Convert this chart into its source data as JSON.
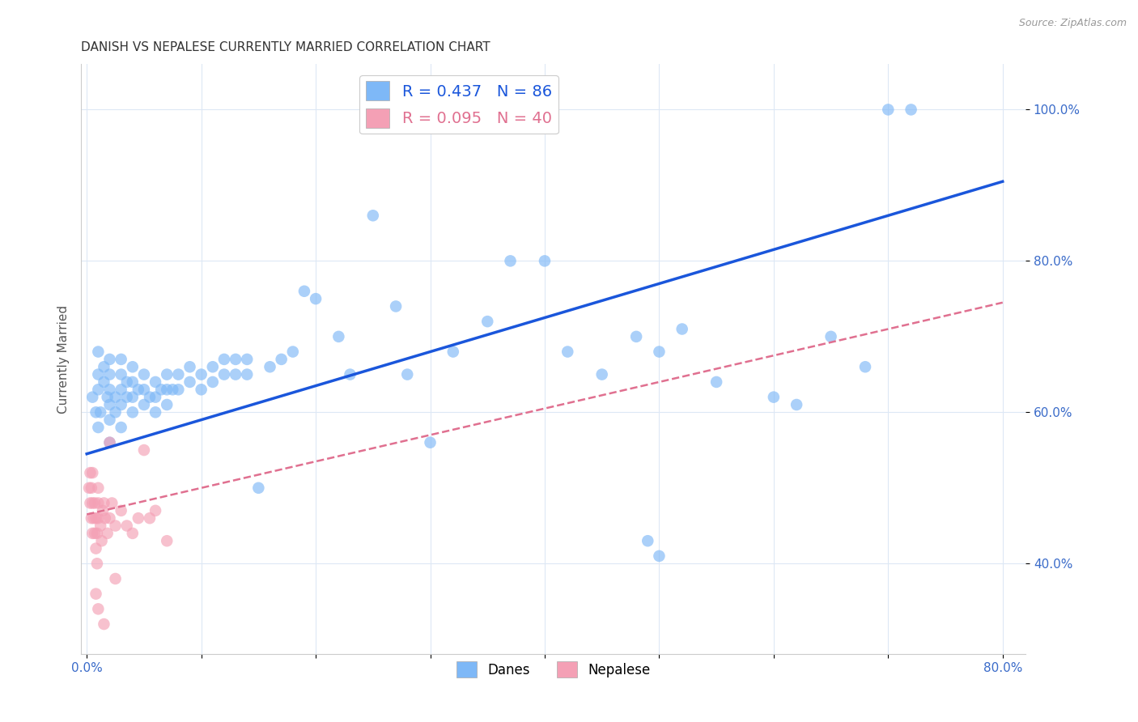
{
  "title": "DANISH VS NEPALESE CURRENTLY MARRIED CORRELATION CHART",
  "source": "Source: ZipAtlas.com",
  "ylabel": "Currently Married",
  "xlim": [
    -0.005,
    0.82
  ],
  "ylim": [
    0.28,
    1.06
  ],
  "x_ticks": [
    0.0,
    0.1,
    0.2,
    0.3,
    0.4,
    0.5,
    0.6,
    0.7,
    0.8
  ],
  "x_tick_labels": [
    "0.0%",
    "",
    "",
    "",
    "",
    "",
    "",
    "",
    "80.0%"
  ],
  "y_ticks": [
    0.4,
    0.6,
    0.8,
    1.0
  ],
  "y_tick_labels": [
    "40.0%",
    "60.0%",
    "80.0%",
    "100.0%"
  ],
  "danes_R": 0.437,
  "danes_N": 86,
  "nepalese_R": 0.095,
  "nepalese_N": 40,
  "danes_color": "#7eb8f7",
  "danes_line_color": "#1a56db",
  "nepalese_color": "#f4a0b5",
  "nepalese_line_color": "#e07090",
  "legend_label_danes": "Danes",
  "legend_label_nepalese": "Nepalese",
  "danes_x": [
    0.005,
    0.008,
    0.01,
    0.01,
    0.01,
    0.01,
    0.012,
    0.015,
    0.015,
    0.018,
    0.02,
    0.02,
    0.02,
    0.02,
    0.02,
    0.02,
    0.025,
    0.025,
    0.03,
    0.03,
    0.03,
    0.03,
    0.03,
    0.035,
    0.035,
    0.04,
    0.04,
    0.04,
    0.04,
    0.045,
    0.05,
    0.05,
    0.05,
    0.055,
    0.06,
    0.06,
    0.06,
    0.065,
    0.07,
    0.07,
    0.07,
    0.075,
    0.08,
    0.08,
    0.09,
    0.09,
    0.1,
    0.1,
    0.11,
    0.11,
    0.12,
    0.12,
    0.13,
    0.13,
    0.14,
    0.14,
    0.15,
    0.16,
    0.17,
    0.18,
    0.19,
    0.2,
    0.22,
    0.23,
    0.25,
    0.27,
    0.28,
    0.3,
    0.32,
    0.35,
    0.37,
    0.4,
    0.42,
    0.45,
    0.48,
    0.5,
    0.52,
    0.55,
    0.6,
    0.62,
    0.65,
    0.68,
    0.7,
    0.72,
    0.49,
    0.5
  ],
  "danes_y": [
    0.62,
    0.6,
    0.58,
    0.63,
    0.65,
    0.68,
    0.6,
    0.64,
    0.66,
    0.62,
    0.56,
    0.59,
    0.61,
    0.63,
    0.65,
    0.67,
    0.6,
    0.62,
    0.58,
    0.61,
    0.63,
    0.65,
    0.67,
    0.62,
    0.64,
    0.6,
    0.62,
    0.64,
    0.66,
    0.63,
    0.61,
    0.63,
    0.65,
    0.62,
    0.6,
    0.62,
    0.64,
    0.63,
    0.61,
    0.63,
    0.65,
    0.63,
    0.63,
    0.65,
    0.64,
    0.66,
    0.63,
    0.65,
    0.64,
    0.66,
    0.65,
    0.67,
    0.65,
    0.67,
    0.65,
    0.67,
    0.5,
    0.66,
    0.67,
    0.68,
    0.76,
    0.75,
    0.7,
    0.65,
    0.86,
    0.74,
    0.65,
    0.56,
    0.68,
    0.72,
    0.8,
    0.8,
    0.68,
    0.65,
    0.7,
    0.68,
    0.71,
    0.64,
    0.62,
    0.61,
    0.7,
    0.66,
    1.0,
    1.0,
    0.43,
    0.41
  ],
  "nepalese_x": [
    0.002,
    0.003,
    0.003,
    0.004,
    0.004,
    0.005,
    0.005,
    0.005,
    0.006,
    0.007,
    0.007,
    0.008,
    0.008,
    0.009,
    0.009,
    0.01,
    0.01,
    0.01,
    0.012,
    0.013,
    0.014,
    0.015,
    0.016,
    0.018,
    0.02,
    0.022,
    0.025,
    0.03,
    0.035,
    0.04,
    0.045,
    0.05,
    0.055,
    0.06,
    0.07,
    0.02,
    0.01,
    0.008,
    0.015,
    0.025
  ],
  "nepalese_y": [
    0.5,
    0.48,
    0.52,
    0.46,
    0.5,
    0.44,
    0.48,
    0.52,
    0.46,
    0.44,
    0.48,
    0.42,
    0.46,
    0.44,
    0.4,
    0.46,
    0.48,
    0.5,
    0.45,
    0.43,
    0.47,
    0.48,
    0.46,
    0.44,
    0.46,
    0.48,
    0.45,
    0.47,
    0.45,
    0.44,
    0.46,
    0.55,
    0.46,
    0.47,
    0.43,
    0.56,
    0.34,
    0.36,
    0.32,
    0.38
  ],
  "background_color": "#ffffff",
  "grid_color": "#dde8f5",
  "title_fontsize": 11,
  "axis_label_color": "#3a6bc9",
  "tick_label_fontsize": 11
}
